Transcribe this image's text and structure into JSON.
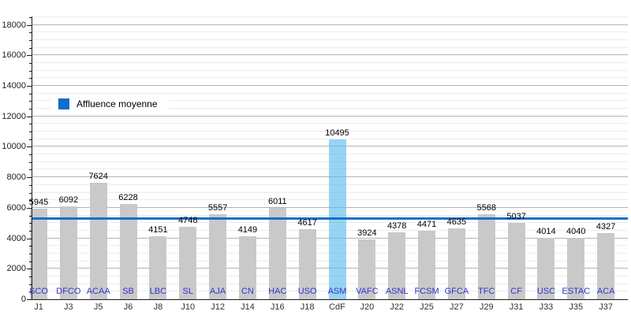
{
  "chart_data": {
    "type": "bar",
    "title": "",
    "xlabel": "",
    "ylabel": "",
    "categories": [
      "SCO",
      "DFCO",
      "ACAA",
      "SB",
      "LBC",
      "SL",
      "AJA",
      "CN",
      "HAC",
      "USO",
      "ASM",
      "VAFC",
      "ASNL",
      "FCSM",
      "GFCA",
      "TFC",
      "CF",
      "USC",
      "ESTAC",
      "ACA"
    ],
    "x_labels": [
      "J1",
      "J3",
      "J5",
      "J6",
      "J8",
      "J10",
      "J12",
      "J14",
      "J16",
      "J18",
      "CdF",
      "J20",
      "J22",
      "J25",
      "J27",
      "J29",
      "J31",
      "J33",
      "J35",
      "J37"
    ],
    "values": [
      5945,
      6092,
      7624,
      6228,
      4151,
      4748,
      5557,
      4149,
      6011,
      4617,
      10495,
      3924,
      4378,
      4471,
      4635,
      5568,
      5037,
      4014,
      4040,
      4327
    ],
    "highlight_index": 10,
    "ylim": [
      0,
      18600
    ],
    "y_ticks": [
      0,
      2000,
      4000,
      6000,
      8000,
      10000,
      12000,
      14000,
      16000,
      18000
    ],
    "y_major_step": 2000,
    "y_minor_step": 500,
    "grid": true,
    "legend_position": "middle-left",
    "average_line": {
      "value": 5300,
      "label": "Affluence moyenne"
    },
    "legend": {
      "label": "Affluence moyenne"
    },
    "colors": {
      "bar": "#C9C9C9",
      "highlight_bar": "rgba(95,188,235,0.65)",
      "average_line": "#1470C8",
      "legend_swatch": "#0F6DC9",
      "category_label": "#3333CC",
      "value_label": "#000000",
      "axis": "#1A1A1A",
      "major_grid": "#B3B3B3",
      "minor_grid": "#ECECEC"
    }
  }
}
